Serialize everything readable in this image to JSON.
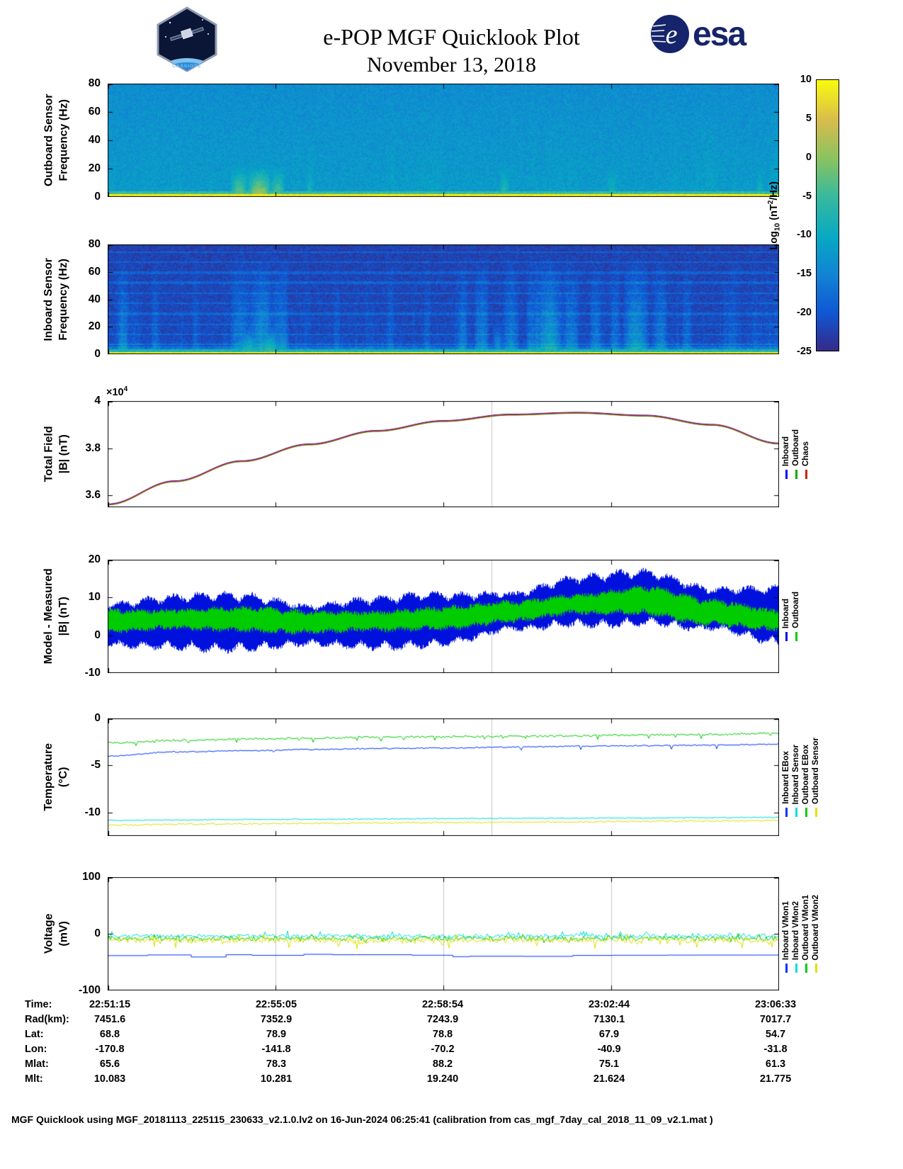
{
  "header": {
    "title": "e-POP MGF Quicklook Plot",
    "date": "November 13, 2018",
    "esa_wordmark": "esa",
    "esa_e": "e",
    "patch_text": "CASSIOPE"
  },
  "colorbar": {
    "label_parts": [
      "Log",
      "10",
      " (nT",
      "2",
      "/Hz)"
    ],
    "min": -25,
    "max": 10,
    "ticks": [
      {
        "v": 10,
        "label": "10"
      },
      {
        "v": 5,
        "label": "5"
      },
      {
        "v": 0,
        "label": "0"
      },
      {
        "v": -5,
        "label": "-5"
      },
      {
        "v": -10,
        "label": "-10"
      },
      {
        "v": -15,
        "label": "-15"
      },
      {
        "v": -20,
        "label": "-20"
      },
      {
        "v": -25,
        "label": "-25"
      }
    ],
    "colormap": [
      [
        0,
        "#352a87"
      ],
      [
        0.14,
        "#1057d3"
      ],
      [
        0.28,
        "#1283d4"
      ],
      [
        0.42,
        "#07a9c2"
      ],
      [
        0.57,
        "#38b99e"
      ],
      [
        0.71,
        "#8ac360"
      ],
      [
        0.85,
        "#d8bb4d"
      ],
      [
        1,
        "#f9fb0e"
      ]
    ]
  },
  "ephemeris": {
    "rows": [
      {
        "key": "time",
        "label": "Time:",
        "values": [
          "22:51:15",
          "22:55:05",
          "22:58:54",
          "23:02:44",
          "23:06:33"
        ]
      },
      {
        "key": "rad",
        "label": "Rad(km):",
        "values": [
          "7451.6",
          "7352.9",
          "7243.9",
          "7130.1",
          "7017.7"
        ]
      },
      {
        "key": "lat",
        "label": "Lat:",
        "values": [
          "68.8",
          "78.9",
          "78.8",
          "67.9",
          "54.7"
        ]
      },
      {
        "key": "lon",
        "label": "Lon:",
        "values": [
          "-170.8",
          "-141.8",
          "-70.2",
          "-40.9",
          "-31.8"
        ]
      },
      {
        "key": "mlat",
        "label": "Mlat:",
        "values": [
          "65.6",
          "78.3",
          "88.2",
          "75.1",
          "61.3"
        ]
      },
      {
        "key": "mlt",
        "label": "Mlt:",
        "values": [
          "10.083",
          "10.281",
          "19.240",
          "21.624",
          "21.775"
        ]
      }
    ]
  },
  "footer": "MGF Quicklook using MGF_20181113_225115_230633_v2.1.0.lv2 on 16-Jun-2024 06:25:41 (calibration from cas_mgf_7day_cal_2018_11_09_v2.1.mat )",
  "chart_data": [
    {
      "panel": "panel-outboard-spectrogram",
      "type": "heatmap",
      "ylabel_lines": [
        "Outboard Sensor",
        "Frequency (Hz)"
      ],
      "ylim": [
        0,
        80
      ],
      "yticks": [
        {
          "v": 0,
          "label": "0"
        },
        {
          "v": 20,
          "label": "20"
        },
        {
          "v": 40,
          "label": "40"
        },
        {
          "v": 60,
          "label": "60"
        },
        {
          "v": 80,
          "label": "80"
        }
      ],
      "xticks": [
        0,
        0.25,
        0.5,
        0.75,
        1
      ],
      "base": -13,
      "noise": 1.7,
      "walk": 0.5,
      "tilt": 0.9,
      "bottom_band": {
        "fmax": 2.2,
        "value": 8
      },
      "edge_band": {
        "fmax": 4.6,
        "value": -5
      },
      "bursts": [
        {
          "x": 0.195,
          "w": 0.014,
          "s": 9
        },
        {
          "x": 0.225,
          "w": 0.02,
          "s": 12
        },
        {
          "x": 0.252,
          "w": 0.012,
          "s": 8
        },
        {
          "x": 0.3,
          "w": 0.006,
          "s": 4
        },
        {
          "x": 0.59,
          "w": 0.008,
          "s": 5
        },
        {
          "x": 0.75,
          "w": 0.008,
          "s": 4
        },
        {
          "x": 0.97,
          "w": 0.006,
          "s": 4
        }
      ],
      "seed": 7,
      "description": "Power spectral density near 1e-13 nT2/Hz across 0-80 Hz; intense band below ~2 Hz; low-frequency bursts around 22:54"
    },
    {
      "panel": "panel-inboard-spectrogram",
      "type": "heatmap",
      "ylabel_lines": [
        "Inboard Sensor",
        "Frequency (Hz)"
      ],
      "ylim": [
        0,
        80
      ],
      "yticks": [
        {
          "v": 0,
          "label": "0"
        },
        {
          "v": 20,
          "label": "20"
        },
        {
          "v": 40,
          "label": "40"
        },
        {
          "v": 60,
          "label": "60"
        },
        {
          "v": 80,
          "label": "80"
        }
      ],
      "xticks": [
        0,
        0.25,
        0.5,
        0.75,
        1
      ],
      "base": -22,
      "noise": 1.6,
      "walk": 1.1,
      "tilt": 0.5,
      "lowfreq_boost": 2.5,
      "hlines": [
        5,
        7.5,
        15,
        22.5,
        30,
        37.5,
        45,
        52.5,
        60,
        67.5,
        75
      ],
      "streaks": [
        {
          "x": 0.022,
          "w": 0.01,
          "s": 5.5
        },
        {
          "x": 0.07,
          "w": 0.006,
          "s": 3
        },
        {
          "x": 0.13,
          "w": 0.006,
          "s": 3
        },
        {
          "x": 0.196,
          "w": 0.016,
          "s": 6.5
        },
        {
          "x": 0.228,
          "w": 0.02,
          "s": 8
        },
        {
          "x": 0.258,
          "w": 0.012,
          "s": 6
        },
        {
          "x": 0.34,
          "w": 0.006,
          "s": 3
        },
        {
          "x": 0.42,
          "w": 0.007,
          "s": 3.5
        },
        {
          "x": 0.475,
          "w": 0.006,
          "s": 3
        },
        {
          "x": 0.528,
          "w": 0.008,
          "s": 4
        },
        {
          "x": 0.556,
          "w": 0.012,
          "s": 5.5
        },
        {
          "x": 0.6,
          "w": 0.012,
          "s": 6
        },
        {
          "x": 0.632,
          "w": 0.01,
          "s": 5
        },
        {
          "x": 0.655,
          "w": 0.02,
          "s": 9
        },
        {
          "x": 0.69,
          "w": 0.012,
          "s": 6.5
        },
        {
          "x": 0.726,
          "w": 0.01,
          "s": 5.5
        },
        {
          "x": 0.755,
          "w": 0.008,
          "s": 5
        },
        {
          "x": 0.786,
          "w": 0.02,
          "s": 9.5
        },
        {
          "x": 0.822,
          "w": 0.012,
          "s": 6
        },
        {
          "x": 0.862,
          "w": 0.008,
          "s": 4.5
        },
        {
          "x": 0.93,
          "w": 0.006,
          "s": 3
        }
      ],
      "bottom_band": {
        "fmax": 2.2,
        "value": 8
      },
      "edge_band": {
        "fmax": 4.2,
        "value": -8
      },
      "bursts": [
        {
          "x": 0.21,
          "w": 0.018,
          "s": 12
        },
        {
          "x": 0.24,
          "w": 0.018,
          "s": 14
        },
        {
          "x": 0.26,
          "w": 0.01,
          "s": 10
        },
        {
          "x": 0.58,
          "w": 0.008,
          "s": 8
        },
        {
          "x": 0.655,
          "w": 0.012,
          "s": 9
        },
        {
          "x": 0.786,
          "w": 0.012,
          "s": 9
        }
      ],
      "seed": 13,
      "description": "Darker background near 1e-22 nT2/Hz with vertical interference streaks, faint horizontal lines, and intense band below ~2 Hz"
    },
    {
      "panel": "panel-total-field",
      "type": "line",
      "ylabel_lines": [
        "Total Field",
        "|B| (nT)"
      ],
      "exp": [
        "×10",
        "4"
      ],
      "ylim": [
        35500,
        40000
      ],
      "yticks": [
        {
          "v": 36000,
          "label": "3.6"
        },
        {
          "v": 38000,
          "label": "3.8"
        },
        {
          "v": 40000,
          "label": "4"
        }
      ],
      "xticks": [
        0,
        0.25,
        0.5,
        0.75,
        1
      ],
      "gridx": [
        0.572
      ],
      "series": [
        {
          "name": "Inboard",
          "color": "#0000ff",
          "style": "smooth",
          "dy": -0.7,
          "lw": 1,
          "values": [
            35620,
            36600,
            37450,
            38160,
            38730,
            39150,
            39420,
            39500,
            39380,
            38990,
            38200
          ]
        },
        {
          "name": "Outboard",
          "color": "#00aa00",
          "style": "smooth",
          "dy": 0.7,
          "lw": 1,
          "values": [
            35620,
            36600,
            37450,
            38160,
            38730,
            39150,
            39420,
            39500,
            39380,
            38990,
            38200
          ]
        },
        {
          "name": "Chaos",
          "color": "#cc2200",
          "style": "smooth",
          "dy": 0,
          "lw": 1.3,
          "values": [
            35620,
            36600,
            37450,
            38160,
            38730,
            39150,
            39420,
            39500,
            39380,
            38990,
            38200
          ]
        }
      ],
      "seed": 3
    },
    {
      "panel": "panel-model-measured",
      "type": "line",
      "ylabel_lines": [
        "Model - Measured",
        "|B| (nT)"
      ],
      "ylim": [
        -10,
        20
      ],
      "yticks": [
        {
          "v": -10,
          "label": "-10"
        },
        {
          "v": 0,
          "label": "0"
        },
        {
          "v": 10,
          "label": "10"
        },
        {
          "v": 20,
          "label": "20"
        }
      ],
      "xticks": [
        0,
        0.25,
        0.5,
        0.75,
        1
      ],
      "gridx": [
        0.572
      ],
      "series": [
        {
          "name": "Inboard",
          "color": "#0011dd",
          "style": "band",
          "phase": 0,
          "top": [
            10.5,
            11,
            11.5,
            10,
            10.5,
            11.5,
            13,
            16,
            17.5,
            14.5,
            13.5
          ],
          "bottom": [
            -5,
            -4,
            -4.5,
            -4.5,
            -4,
            -3,
            -0.5,
            2,
            2.5,
            -0.5,
            -3
          ]
        },
        {
          "name": "Outboard",
          "color": "#00cc00",
          "style": "band",
          "phase": 1.1,
          "top": [
            7,
            7.5,
            7.5,
            6.5,
            7,
            7.5,
            9,
            11.5,
            13,
            9.5,
            7.5
          ],
          "bottom": [
            0.5,
            1,
            1,
            0.5,
            0.5,
            1.5,
            3.5,
            5,
            5.5,
            2.5,
            0.5
          ]
        }
      ],
      "seed": 11
    },
    {
      "panel": "panel-temperature",
      "type": "line",
      "ylabel_lines": [
        "Temperature",
        "(°C)"
      ],
      "ylim": [
        -12.5,
        0
      ],
      "yticks": [
        {
          "v": 0,
          "label": "0"
        },
        {
          "v": -5,
          "label": "-5"
        },
        {
          "v": -10,
          "label": "-10"
        }
      ],
      "xticks": [
        0,
        0.25,
        0.5,
        0.75,
        1
      ],
      "gridx": [
        0.572
      ],
      "series": [
        {
          "name": "Inboard EBox",
          "color": "#0033ff",
          "style": "smooth",
          "noise": 0.06,
          "spikes": [
            0.02,
            0.5
          ],
          "values": [
            -4.0,
            -3.55,
            -3.45,
            -3.3,
            -3.2,
            -3.15,
            -3.05,
            -2.95,
            -2.9,
            -2.85,
            -2.75
          ]
        },
        {
          "name": "Inboard Sensor",
          "color": "#00dede",
          "style": "smooth",
          "noise": 0.05,
          "values": [
            -10.85,
            -10.8,
            -10.75,
            -10.72,
            -10.7,
            -10.65,
            -10.62,
            -10.6,
            -10.58,
            -10.55,
            -10.5
          ]
        },
        {
          "name": "Outboard EBox",
          "color": "#00cc00",
          "style": "smooth",
          "noise": 0.1,
          "spikes": [
            0.05,
            0.45
          ],
          "values": [
            -2.6,
            -2.35,
            -2.2,
            -2.1,
            -2.0,
            -1.95,
            -1.9,
            -1.85,
            -1.75,
            -1.7,
            -1.6
          ]
        },
        {
          "name": "Outboard Sensor",
          "color": "#e0e000",
          "style": "smooth",
          "noise": 0.07,
          "values": [
            -11.35,
            -11.25,
            -11.2,
            -11.15,
            -11.12,
            -11.08,
            -11.05,
            -11.0,
            -10.95,
            -10.9,
            -10.85
          ]
        }
      ],
      "seed": 21
    },
    {
      "panel": "panel-voltage",
      "type": "line",
      "ylabel_lines": [
        "Voltage",
        "(mV)"
      ],
      "ylim": [
        -100,
        100
      ],
      "yticks": [
        {
          "v": -100,
          "label": "-100"
        },
        {
          "v": 0,
          "label": "0"
        },
        {
          "v": 100,
          "label": "100"
        }
      ],
      "xticks": [
        0,
        0.25,
        0.5,
        0.75,
        1
      ],
      "gridx": [
        0.25,
        0.5,
        0.75
      ],
      "series": [
        {
          "name": "Inboard VMon1",
          "color": "#0033ff",
          "style": "steps",
          "base": -38.5,
          "range": 2.5,
          "start": -62
        },
        {
          "name": "Inboard VMon2",
          "color": "#00dede",
          "style": "jagged",
          "base": -4,
          "n1": 3,
          "p": 0.18,
          "n2": 14,
          "bias": 0.5
        },
        {
          "name": "Outboard VMon1",
          "color": "#00cc00",
          "style": "jagged",
          "base": -8,
          "n1": 4,
          "p": 0.15,
          "n2": 10,
          "bias": 0.55
        },
        {
          "name": "Outboard VMon2",
          "color": "#e0e000",
          "style": "jagged",
          "base": -11,
          "n1": 5,
          "p": 0.22,
          "n2": 20,
          "bias": 0.65
        }
      ],
      "seed": 33
    }
  ]
}
